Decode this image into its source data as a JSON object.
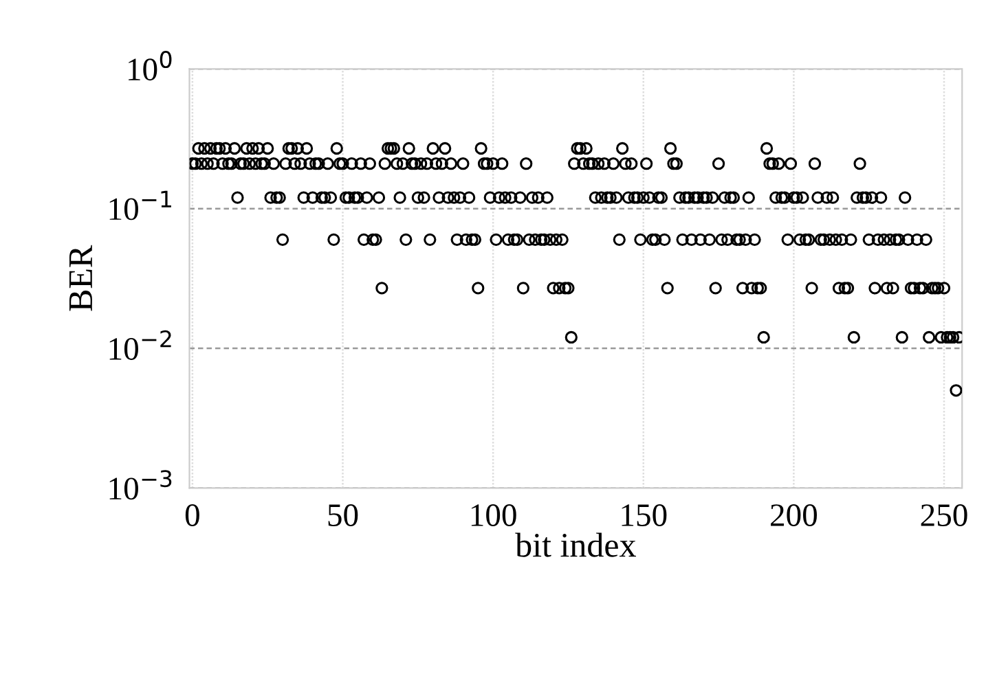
{
  "chart_data": {
    "type": "scatter",
    "xlabel": "bit index",
    "ylabel": "BER",
    "log": "y",
    "grid": true,
    "marker": "circle",
    "xlim": [
      -1,
      256
    ],
    "xticks": [
      0,
      50,
      100,
      150,
      200,
      250
    ],
    "ylim": [
      0.001,
      1
    ],
    "yticks": [
      {
        "value": 0.001,
        "label": "10$^{−3}$"
      },
      {
        "value": 0.01,
        "label": "10$^{−2}$"
      },
      {
        "value": 0.1,
        "label": "10$^{−1}$"
      },
      {
        "value": 1,
        "label": "10$^{0}$"
      }
    ],
    "series": [
      {
        "color": "#000000",
        "x": [
          0,
          1,
          2,
          3,
          4,
          5,
          6,
          7,
          8,
          9,
          10,
          11,
          12,
          13,
          14,
          15,
          16,
          17,
          18,
          19,
          20,
          21,
          22,
          23,
          24,
          25,
          26,
          27,
          28,
          29,
          30,
          31,
          32,
          33,
          34,
          35,
          36,
          37,
          38,
          39,
          40,
          41,
          42,
          43,
          44,
          45,
          46,
          47,
          48,
          49,
          50,
          51,
          52,
          53,
          54,
          55,
          56,
          57,
          58,
          59,
          60,
          61,
          62,
          63,
          64,
          65,
          66,
          67,
          68,
          69,
          70,
          71,
          72,
          73,
          74,
          75,
          76,
          77,
          78,
          79,
          80,
          81,
          82,
          83,
          84,
          85,
          86,
          87,
          88,
          89,
          90,
          91,
          92,
          93,
          94,
          95,
          96,
          97,
          98,
          99,
          100,
          101,
          102,
          103,
          104,
          105,
          106,
          107,
          108,
          109,
          110,
          111,
          112,
          113,
          114,
          115,
          116,
          117,
          118,
          119,
          120,
          121,
          122,
          123,
          124,
          125,
          126,
          127,
          128,
          129,
          130,
          131,
          132,
          133,
          134,
          135,
          136,
          137,
          138,
          139,
          140,
          141,
          142,
          143,
          144,
          145,
          146,
          147,
          148,
          149,
          150,
          151,
          152,
          153,
          154,
          155,
          156,
          157,
          158,
          159,
          160,
          161,
          162,
          163,
          164,
          165,
          166,
          167,
          168,
          169,
          170,
          171,
          172,
          173,
          174,
          175,
          176,
          177,
          178,
          179,
          180,
          181,
          182,
          183,
          184,
          185,
          186,
          187,
          188,
          189,
          190,
          191,
          192,
          193,
          194,
          195,
          196,
          197,
          198,
          199,
          200,
          201,
          202,
          203,
          204,
          205,
          206,
          207,
          208,
          209,
          210,
          211,
          212,
          213,
          214,
          215,
          216,
          217,
          218,
          219,
          220,
          221,
          222,
          223,
          224,
          225,
          226,
          227,
          228,
          229,
          230,
          231,
          232,
          233,
          234,
          235,
          236,
          237,
          238,
          239,
          240,
          241,
          242,
          243,
          244,
          245,
          246,
          247,
          248,
          249,
          250,
          251,
          252,
          253,
          254,
          255
        ],
        "values": [
          0.21,
          0.21,
          0.27,
          0.21,
          0.27,
          0.21,
          0.27,
          0.21,
          0.27,
          0.27,
          0.21,
          0.27,
          0.21,
          0.21,
          0.27,
          0.12,
          0.21,
          0.21,
          0.27,
          0.21,
          0.27,
          0.21,
          0.27,
          0.21,
          0.21,
          0.27,
          0.12,
          0.21,
          0.12,
          0.12,
          0.06,
          0.21,
          0.27,
          0.27,
          0.21,
          0.27,
          0.21,
          0.12,
          0.27,
          0.21,
          0.12,
          0.21,
          0.21,
          0.12,
          0.12,
          0.21,
          0.12,
          0.06,
          0.27,
          0.21,
          0.21,
          0.12,
          0.12,
          0.21,
          0.12,
          0.12,
          0.21,
          0.06,
          0.12,
          0.21,
          0.06,
          0.06,
          0.12,
          0.027,
          0.21,
          0.27,
          0.27,
          0.27,
          0.21,
          0.12,
          0.21,
          0.06,
          0.27,
          0.21,
          0.21,
          0.12,
          0.21,
          0.12,
          0.21,
          0.06,
          0.27,
          0.21,
          0.12,
          0.21,
          0.27,
          0.12,
          0.21,
          0.12,
          0.06,
          0.12,
          0.21,
          0.06,
          0.12,
          0.06,
          0.06,
          0.027,
          0.27,
          0.21,
          0.21,
          0.12,
          0.21,
          0.06,
          0.12,
          0.21,
          0.12,
          0.06,
          0.12,
          0.06,
          0.06,
          0.12,
          0.027,
          0.21,
          0.06,
          0.12,
          0.06,
          0.12,
          0.06,
          0.06,
          0.12,
          0.06,
          0.027,
          0.06,
          0.027,
          0.06,
          0.027,
          0.027,
          0.012,
          0.21,
          0.27,
          0.27,
          0.21,
          0.27,
          0.21,
          0.21,
          0.12,
          0.21,
          0.12,
          0.21,
          0.12,
          0.12,
          0.21,
          0.12,
          0.06,
          0.27,
          0.21,
          0.12,
          0.21,
          0.12,
          0.12,
          0.06,
          0.12,
          0.21,
          0.12,
          0.06,
          0.06,
          0.12,
          0.12,
          0.06,
          0.027,
          0.27,
          0.21,
          0.21,
          0.12,
          0.06,
          0.12,
          0.12,
          0.06,
          0.12,
          0.12,
          0.06,
          0.12,
          0.12,
          0.06,
          0.12,
          0.027,
          0.21,
          0.06,
          0.12,
          0.06,
          0.12,
          0.12,
          0.06,
          0.06,
          0.027,
          0.06,
          0.12,
          0.027,
          0.06,
          0.027,
          0.027,
          0.012,
          0.27,
          0.21,
          0.21,
          0.12,
          0.21,
          0.12,
          0.12,
          0.06,
          0.21,
          0.12,
          0.12,
          0.06,
          0.12,
          0.06,
          0.06,
          0.027,
          0.21,
          0.12,
          0.06,
          0.06,
          0.12,
          0.06,
          0.12,
          0.06,
          0.027,
          0.06,
          0.027,
          0.027,
          0.06,
          0.012,
          0.12,
          0.21,
          0.12,
          0.12,
          0.06,
          0.12,
          0.027,
          0.06,
          0.12,
          0.06,
          0.027,
          0.06,
          0.027,
          0.06,
          0.06,
          0.012,
          0.12,
          0.06,
          0.027,
          0.027,
          0.06,
          0.027,
          0.027,
          0.06,
          0.012,
          0.027,
          0.027,
          0.027,
          0.012,
          0.027,
          0.012,
          0.012,
          0.012,
          0.005,
          0.012
        ]
      }
    ]
  }
}
